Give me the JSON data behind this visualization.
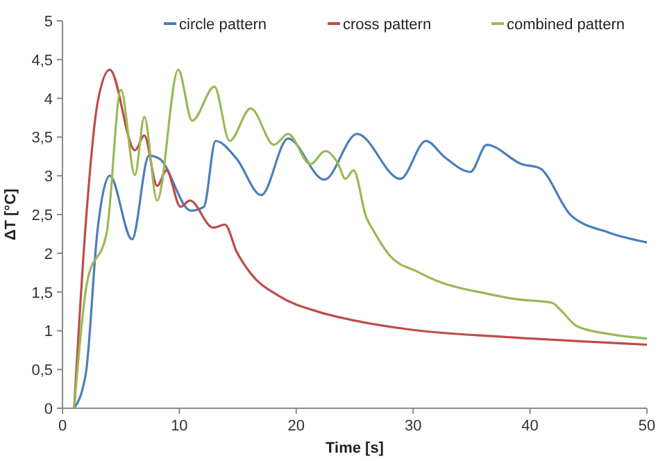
{
  "chart_data": {
    "type": "line",
    "xlabel": "Time [s]",
    "ylabel": "ΔT [°C]",
    "xlim": [
      0,
      50
    ],
    "ylim": [
      0,
      5
    ],
    "xticks": [
      0,
      10,
      20,
      30,
      40,
      50
    ],
    "yticks": [
      0,
      {
        "value": 0.5,
        "label": "0,5"
      },
      1,
      {
        "value": 1.5,
        "label": "1,5"
      },
      2,
      {
        "value": 2.5,
        "label": "2,5"
      },
      3,
      {
        "value": 3.5,
        "label": "3,5"
      },
      4,
      {
        "value": 4.5,
        "label": "4,5"
      },
      5
    ],
    "legend": "top",
    "grid": false,
    "marker": "none",
    "line_style": "solid",
    "series": [
      {
        "name": "circle pattern",
        "color": "#4a7ebb",
        "x": [
          1,
          2,
          3,
          3.5,
          4.05,
          5.95,
          7.4,
          8.3,
          11,
          12.1,
          13.1,
          14.9,
          17,
          19.3,
          22.4,
          25.2,
          28.9,
          31.1,
          32.7,
          34.9,
          36.3,
          39.3,
          40.8,
          43.5,
          46.7,
          50
        ],
        "values": [
          0,
          0.45,
          2.3,
          2.8,
          3.0,
          2.18,
          3.26,
          3.22,
          2.55,
          2.6,
          3.45,
          3.22,
          2.75,
          3.48,
          2.95,
          3.54,
          2.96,
          3.45,
          3.24,
          3.05,
          3.4,
          3.15,
          3.1,
          2.49,
          2.27,
          2.14
        ]
      },
      {
        "name": "cross pattern",
        "color": "#be4b48",
        "x": [
          1,
          2,
          3,
          4.05,
          6.2,
          7,
          8.1,
          8.9,
          10.1,
          10.9,
          12.9,
          13.9,
          14.9,
          16.1,
          18.5,
          22,
          24.4,
          30,
          37.9,
          50
        ],
        "values": [
          0,
          2.4,
          3.94,
          4.37,
          3.33,
          3.52,
          2.87,
          3.07,
          2.6,
          2.68,
          2.33,
          2.37,
          2.02,
          1.74,
          1.45,
          1.24,
          1.15,
          1.01,
          0.92,
          0.82
        ]
      },
      {
        "name": "combined pattern",
        "color": "#98b954",
        "x": [
          1,
          2.1,
          3.8,
          5,
          6.2,
          7,
          8.1,
          9.9,
          11.1,
          13,
          14.3,
          16.1,
          18.1,
          19.3,
          21.2,
          22.5,
          23.6,
          24.2,
          24.9,
          26,
          26.5,
          28,
          30.4,
          32.1,
          36.3,
          38.7,
          41.9,
          42.6,
          44,
          46.7,
          50
        ],
        "values": [
          0,
          1.62,
          2.28,
          4.11,
          3.01,
          3.76,
          2.68,
          4.37,
          3.71,
          4.15,
          3.45,
          3.87,
          3.4,
          3.54,
          3.15,
          3.32,
          3.15,
          2.96,
          3.07,
          2.46,
          2.32,
          1.97,
          1.76,
          1.64,
          1.48,
          1.41,
          1.36,
          1.27,
          1.06,
          0.96,
          0.9
        ]
      }
    ]
  }
}
